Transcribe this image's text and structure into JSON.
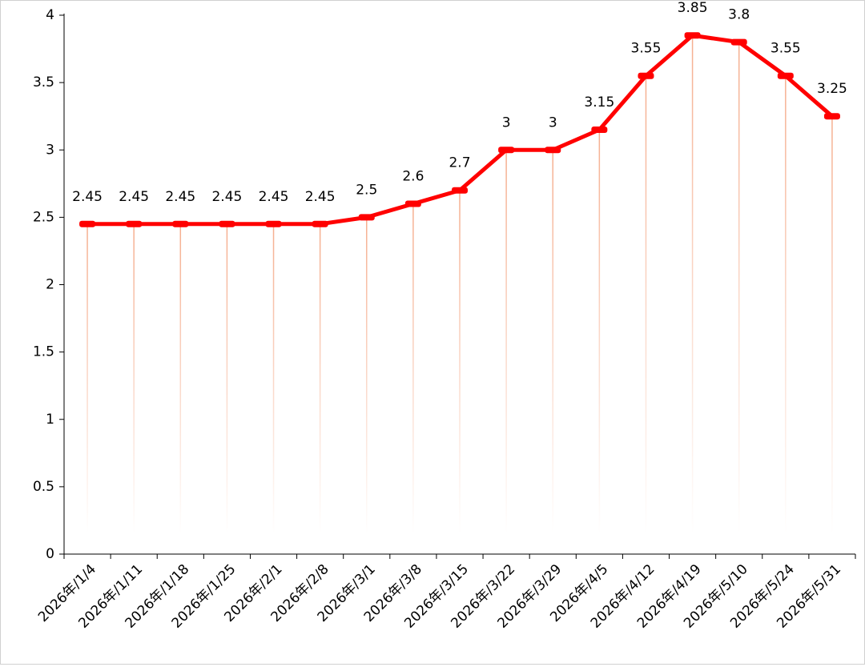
{
  "chart_data": {
    "type": "line",
    "categories": [
      "2026年/1/4",
      "2026年/1/11",
      "2026年/1/18",
      "2026年/1/25",
      "2026年/2/1",
      "2026年/2/8",
      "2026年/3/1",
      "2026年/3/8",
      "2026年/3/15",
      "2026年/3/22",
      "2026年/3/29",
      "2026年/4/5",
      "2026年/4/12",
      "2026年/4/19",
      "2026年/5/10",
      "2026年/5/24",
      "2026年/5/31"
    ],
    "values": [
      2.45,
      2.45,
      2.45,
      2.45,
      2.45,
      2.45,
      2.5,
      2.6,
      2.7,
      3,
      3,
      3.15,
      3.55,
      3.85,
      3.8,
      3.55,
      3.25
    ],
    "color": "#ff0000",
    "ylim": [
      0,
      4
    ],
    "yticks": [
      0,
      0.5,
      1,
      1.5,
      2,
      2.5,
      3,
      3.5,
      4
    ],
    "drop_lines": true
  }
}
